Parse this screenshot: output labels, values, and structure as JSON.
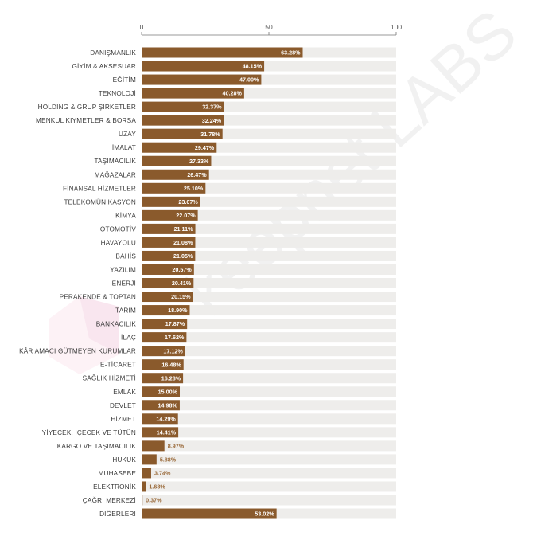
{
  "chart_data": {
    "type": "bar",
    "orientation": "horizontal",
    "categories": [
      "DANIŞMANLIK",
      "GİYİM & AKSESUAR",
      "EĞİTİM",
      "TEKNOLOJİ",
      "HOLDİNG & GRUP ŞİRKETLER",
      "MENKUL KIYMETLER & BORSA",
      "UZAY",
      "İMALAT",
      "TAŞIMACILIK",
      "MAĞAZALAR",
      "FİNANSAL HİZMETLER",
      "TELEKOMÜNİKASYON",
      "KİMYA",
      "OTOMOTİV",
      "HAVAYOLU",
      "BAHİS",
      "YAZILIM",
      "ENERJİ",
      "PERAKENDE & TOPTAN",
      "TARIM",
      "BANKACILIK",
      "İLAÇ",
      "KÂR AMACI GÜTMEYEN KURUMLAR",
      "E-TİCARET",
      "SAĞLIK HİZMETİ",
      "EMLAK",
      "DEVLET",
      "HİZMET",
      "YİYECEK, İÇECEK VE TÜTÜN",
      "KARGO VE TAŞIMACILIK",
      "HUKUK",
      "MUHASEBE",
      "ELEKTRONİK",
      "ÇAĞRI MERKEZİ",
      "DİĞERLERİ"
    ],
    "values": [
      63.28,
      48.15,
      47.0,
      40.28,
      32.37,
      32.24,
      31.78,
      29.47,
      27.33,
      26.47,
      25.1,
      23.07,
      22.07,
      21.11,
      21.08,
      21.05,
      20.57,
      20.41,
      20.15,
      18.9,
      17.87,
      17.62,
      17.12,
      16.48,
      16.28,
      15.0,
      14.98,
      14.29,
      14.41,
      8.97,
      5.88,
      3.74,
      1.68,
      0.37,
      53.02
    ],
    "value_labels": [
      "63.28%",
      "48.15%",
      "47.00%",
      "40.28%",
      "32.37%",
      "32.24%",
      "31.78%",
      "29.47%",
      "27.33%",
      "26.47%",
      "25.10%",
      "23.07%",
      "22.07%",
      "21.11%",
      "21.08%",
      "21.05%",
      "20.57%",
      "20.41%",
      "20.15%",
      "18.90%",
      "17.87%",
      "17.62%",
      "17.12%",
      "16.48%",
      "16.28%",
      "15.00%",
      "14.98%",
      "14.29%",
      "14.41%",
      "8.97%",
      "5.88%",
      "3.74%",
      "1.68%",
      "0.37%",
      "53.02%"
    ],
    "xlim": [
      0,
      100
    ],
    "x_ticks": [
      "0",
      "50",
      "100"
    ],
    "title": "",
    "xlabel": "",
    "ylabel": "",
    "grid": false,
    "legend": "none"
  },
  "watermark": "keepnet LABS",
  "colors": {
    "bar": "#8a5a2c",
    "track": "#eeedeb",
    "value_inside": "#ffffff",
    "value_outside": "#9a6a3a",
    "category_text": "#3a3a3a"
  }
}
